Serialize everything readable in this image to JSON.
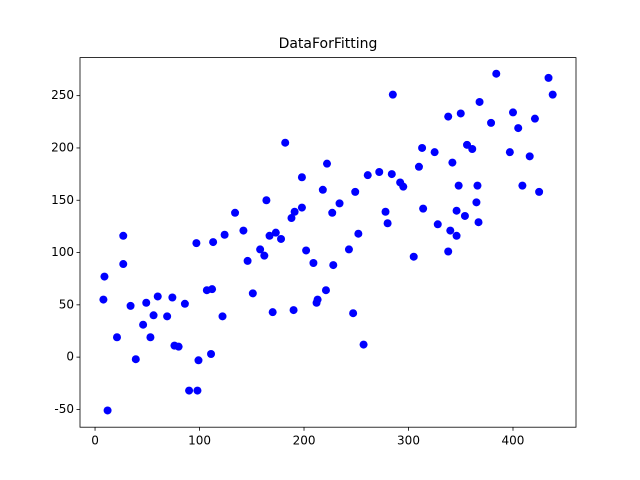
{
  "chart_data": {
    "type": "scatter",
    "title": "DataForFitting",
    "color": "#0000ff",
    "x": [
      9,
      8,
      12,
      21,
      27,
      27,
      34,
      39,
      46,
      49,
      53,
      56,
      60,
      69,
      74,
      76,
      80,
      86,
      90,
      98,
      97,
      99,
      107,
      112,
      111,
      113,
      122,
      124,
      134,
      142,
      146,
      151,
      158,
      162,
      164,
      167,
      170,
      173,
      178,
      182,
      188,
      191,
      190,
      198,
      198,
      202,
      209,
      212,
      213,
      218,
      221,
      222,
      227,
      228,
      234,
      243,
      247,
      249,
      252,
      257,
      261,
      272,
      278,
      280,
      285,
      284,
      292,
      295,
      305,
      310,
      313,
      314,
      325,
      328,
      338,
      338,
      340,
      342,
      346,
      346,
      348,
      350,
      354,
      356,
      361,
      365,
      366,
      367,
      368,
      379,
      384,
      397,
      400,
      405,
      409,
      416,
      421,
      425,
      434,
      438
    ],
    "y": [
      77,
      55,
      -51,
      19,
      116,
      89,
      49,
      -2,
      31,
      52,
      19,
      40,
      58,
      39,
      57,
      11,
      10,
      51,
      -32,
      -32,
      109,
      -3,
      64,
      65,
      3,
      110,
      39,
      117,
      138,
      121,
      92,
      61,
      103,
      97,
      150,
      116,
      43,
      119,
      113,
      205,
      133,
      139,
      45,
      172,
      143,
      102,
      90,
      52,
      55,
      160,
      64,
      185,
      138,
      88,
      147,
      103,
      42,
      158,
      118,
      12,
      174,
      177,
      139,
      128,
      251,
      175,
      167,
      163,
      96,
      182,
      200,
      142,
      196,
      127,
      230,
      101,
      121,
      186,
      140,
      116,
      164,
      233,
      135,
      203,
      199,
      148,
      164,
      129,
      244,
      224,
      271,
      196,
      234,
      219,
      164,
      192,
      228,
      158,
      267,
      251
    ],
    "xlim": [
      -14.4,
      460.3
    ],
    "ylim": [
      -67,
      286.4
    ],
    "xticks": [
      0,
      100,
      200,
      300,
      400
    ],
    "yticks": [
      -50,
      0,
      50,
      100,
      150,
      200,
      250
    ]
  }
}
